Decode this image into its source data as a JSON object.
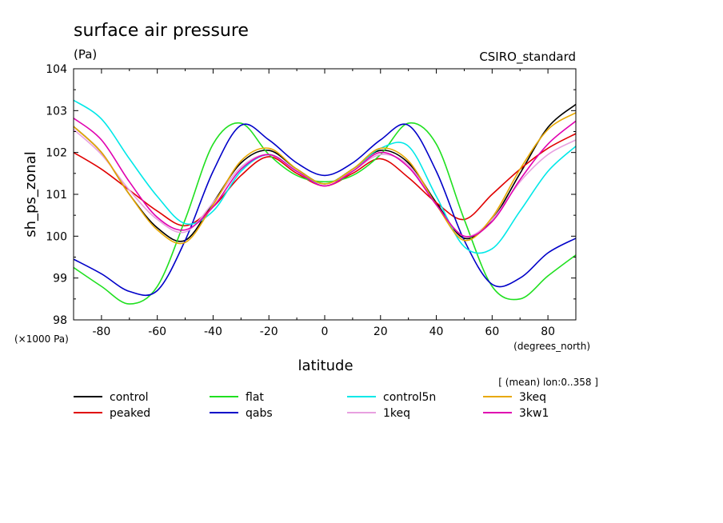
{
  "chart_data": {
    "type": "line",
    "title": "surface air pressure",
    "subtitle": "(Pa)",
    "dataset_label": "CSIRO_standard",
    "xlabel": "latitude",
    "x_units": "(degrees_north)",
    "ylabel": "sh_ps_zonal",
    "y_scale_note": "(×1000 Pa)",
    "annotation": "[ (mean) lon:0..358 ]",
    "xlim": [
      -90,
      90
    ],
    "ylim": [
      98,
      104
    ],
    "xticks": [
      -80,
      -60,
      -40,
      -20,
      0,
      20,
      40,
      60,
      80
    ],
    "yticks": [
      98,
      99,
      100,
      101,
      102,
      103,
      104
    ],
    "x": [
      -90,
      -80,
      -70,
      -60,
      -50,
      -40,
      -30,
      -20,
      -10,
      0,
      10,
      20,
      30,
      40,
      50,
      60,
      70,
      80,
      90
    ],
    "series": [
      {
        "name": "control",
        "color": "#000000",
        "values": [
          102.62,
          102.0,
          101.0,
          100.2,
          99.9,
          100.8,
          101.75,
          102.05,
          101.6,
          101.25,
          101.6,
          102.05,
          101.75,
          100.8,
          99.95,
          100.4,
          101.5,
          102.6,
          103.15
        ]
      },
      {
        "name": "peaked",
        "color": "#e00000",
        "values": [
          102.0,
          101.6,
          101.1,
          100.6,
          100.25,
          100.7,
          101.45,
          101.9,
          101.5,
          101.2,
          101.5,
          101.85,
          101.4,
          100.8,
          100.4,
          101.0,
          101.6,
          102.1,
          102.45
        ]
      },
      {
        "name": "flat",
        "color": "#20e020",
        "values": [
          99.25,
          98.8,
          98.38,
          98.8,
          100.4,
          102.2,
          102.7,
          101.95,
          101.45,
          101.3,
          101.45,
          101.95,
          102.7,
          102.2,
          100.4,
          98.8,
          98.5,
          99.05,
          99.55
        ]
      },
      {
        "name": "qabs",
        "color": "#0000c8",
        "values": [
          99.45,
          99.1,
          98.68,
          98.7,
          99.9,
          101.55,
          102.65,
          102.3,
          101.75,
          101.45,
          101.75,
          102.3,
          102.65,
          101.55,
          99.9,
          98.85,
          99.0,
          99.6,
          99.95
        ]
      },
      {
        "name": "control5n",
        "color": "#00e8e8",
        "values": [
          103.25,
          102.8,
          101.85,
          100.95,
          100.3,
          100.6,
          101.55,
          101.95,
          101.55,
          101.25,
          101.6,
          102.1,
          102.15,
          100.95,
          99.75,
          99.7,
          100.6,
          101.55,
          102.15
        ]
      },
      {
        "name": "1keq",
        "color": "#e8a0e0",
        "values": [
          102.55,
          101.95,
          101.1,
          100.4,
          100.1,
          100.8,
          101.65,
          101.95,
          101.55,
          101.2,
          101.55,
          101.95,
          101.7,
          100.75,
          100.0,
          100.4,
          101.3,
          101.95,
          102.3
        ]
      },
      {
        "name": "3keq",
        "color": "#e8a800",
        "values": [
          102.62,
          102.0,
          101.0,
          100.15,
          99.85,
          100.75,
          101.8,
          102.1,
          101.6,
          101.25,
          101.6,
          102.1,
          101.8,
          100.75,
          99.9,
          100.45,
          101.6,
          102.55,
          102.95
        ]
      },
      {
        "name": "3kw1",
        "color": "#e000b0",
        "values": [
          102.82,
          102.3,
          101.3,
          100.45,
          100.15,
          100.7,
          101.6,
          101.95,
          101.55,
          101.2,
          101.55,
          102.0,
          101.65,
          100.75,
          100.0,
          100.35,
          101.35,
          102.2,
          102.75
        ]
      }
    ]
  }
}
